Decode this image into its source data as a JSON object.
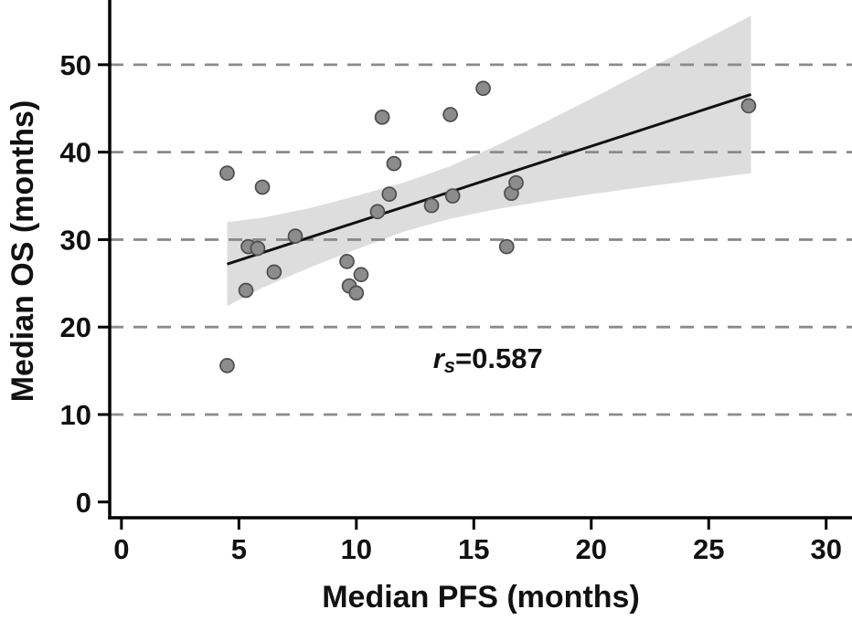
{
  "chart_data": {
    "type": "scatter",
    "title": "",
    "xlabel": "Median PFS (months)",
    "ylabel": "Median OS (months)",
    "xlim": [
      -0.5,
      31.1
    ],
    "ylim": [
      -1.8,
      57.4
    ],
    "x_ticks": [
      0,
      5,
      10,
      15,
      20,
      25,
      30
    ],
    "y_ticks": [
      0,
      10,
      20,
      30,
      40,
      50
    ],
    "grid": {
      "y_values": [
        10,
        20,
        30,
        40,
        50
      ],
      "style": "dashed"
    },
    "points": [
      [
        4.5,
        37.6
      ],
      [
        6.0,
        36.0
      ],
      [
        5.4,
        29.2
      ],
      [
        5.8,
        29.0
      ],
      [
        6.5,
        26.3
      ],
      [
        5.3,
        24.2
      ],
      [
        4.5,
        15.6
      ],
      [
        7.4,
        30.4
      ],
      [
        9.6,
        27.5
      ],
      [
        9.7,
        24.7
      ],
      [
        10.0,
        23.9
      ],
      [
        10.2,
        26.0
      ],
      [
        11.1,
        44.0
      ],
      [
        10.9,
        33.2
      ],
      [
        11.4,
        35.2
      ],
      [
        11.6,
        38.7
      ],
      [
        13.2,
        33.9
      ],
      [
        14.0,
        44.3
      ],
      [
        14.1,
        35.0
      ],
      [
        15.4,
        47.3
      ],
      [
        16.4,
        29.2
      ],
      [
        16.6,
        35.3
      ],
      [
        16.8,
        36.5
      ],
      [
        26.7,
        45.3
      ]
    ],
    "regression_line": {
      "x": [
        4.5,
        26.8
      ],
      "y": [
        27.2,
        46.6
      ]
    },
    "confidence_band": {
      "x": [
        4.5,
        6.0,
        8.0,
        10.0,
        12.0,
        14.0,
        16.0,
        18.0,
        20.0,
        23.0,
        26.8
      ],
      "lower": [
        22.4,
        24.5,
        26.8,
        28.9,
        30.9,
        32.4,
        33.5,
        34.4,
        35.2,
        36.3,
        37.6
      ],
      "upper": [
        32.0,
        32.5,
        33.6,
        35.0,
        36.5,
        38.4,
        40.8,
        43.4,
        46.1,
        50.3,
        55.6
      ]
    },
    "annotation": {
      "r_label": "r",
      "r_sub": "s",
      "value_text": "=0.587",
      "x": 15.6,
      "y": 15.3
    },
    "colors": {
      "point_fill": "#8c8c8c",
      "point_stroke": "#4d4d4d",
      "line": "#111111",
      "band": "#d9d9d9",
      "grid": "#8a8a8a",
      "axis": "#000000"
    }
  }
}
